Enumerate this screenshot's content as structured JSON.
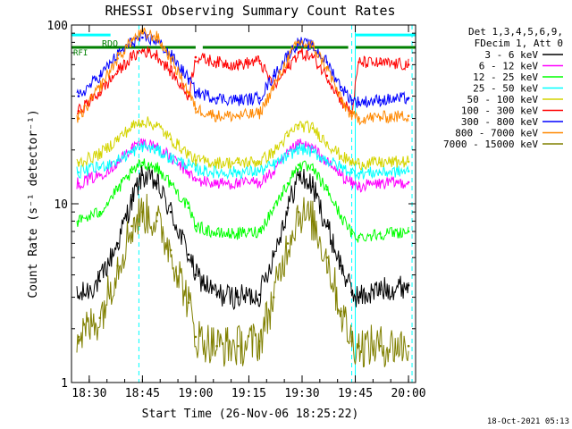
{
  "chart_data": {
    "type": "line",
    "title": "RHESSI Observing Summary Count Rates",
    "xlabel": "Start Time (26-Nov-06 18:25:22)",
    "ylabel": "Count Rate (s⁻¹ detector⁻¹)",
    "yscale": "log",
    "ylim": [
      1,
      100
    ],
    "xlim": [
      "18:25",
      "20:02"
    ],
    "x_ticks": [
      "18:30",
      "18:45",
      "19:00",
      "19:15",
      "19:30",
      "19:45",
      "20:00"
    ],
    "y_ticks": [
      "1",
      "10",
      "100"
    ],
    "footer": "18-Oct-2021 05:13",
    "legend_header": [
      "Det 1,3,4,5,6,9,",
      "FDecim 1, Att 0"
    ],
    "legend_placement": "right",
    "annotations": [
      "RDO",
      "RFI"
    ],
    "series": [
      {
        "name": "3 - 6 keV",
        "color": "#000000",
        "x": [
          "18:27",
          "18:33",
          "18:38",
          "18:42",
          "18:45",
          "18:49",
          "18:53",
          "18:58",
          "19:00",
          "19:06",
          "19:12",
          "19:18",
          "19:22",
          "19:26",
          "19:29",
          "19:33",
          "19:37",
          "19:41",
          "19:44",
          "19:46",
          "19:52",
          "20:00"
        ],
        "values": [
          3.0,
          3.7,
          6.0,
          10.5,
          14.5,
          13.0,
          9.0,
          5.2,
          4.0,
          3.1,
          3.0,
          3.1,
          5.2,
          9.5,
          14.5,
          12.5,
          7.5,
          4.5,
          3.2,
          3.0,
          3.3,
          3.5
        ]
      },
      {
        "name": "6 - 12 keV",
        "color": "#ff00ff",
        "x": [
          "18:27",
          "18:33",
          "18:38",
          "18:42",
          "18:45",
          "18:49",
          "18:53",
          "18:58",
          "19:00",
          "19:06",
          "19:12",
          "19:18",
          "19:22",
          "19:26",
          "19:29",
          "19:33",
          "19:37",
          "19:41",
          "19:44",
          "19:46",
          "19:52",
          "20:00"
        ],
        "values": [
          13.0,
          14.5,
          17.0,
          20.5,
          22.0,
          21.0,
          18.0,
          15.0,
          13.5,
          13.0,
          13.0,
          13.2,
          15.0,
          19.0,
          21.5,
          20.5,
          17.0,
          14.5,
          13.0,
          12.5,
          13.0,
          13.2
        ]
      },
      {
        "name": "12 - 25 keV",
        "color": "#00ff00",
        "x": [
          "18:27",
          "18:33",
          "18:38",
          "18:42",
          "18:45",
          "18:49",
          "18:53",
          "18:58",
          "19:00",
          "19:06",
          "19:12",
          "19:18",
          "19:22",
          "19:26",
          "19:29",
          "19:33",
          "19:37",
          "19:41",
          "19:44",
          "19:46",
          "19:52",
          "20:00"
        ],
        "values": [
          8.0,
          9.0,
          12.0,
          15.0,
          17.0,
          16.0,
          13.0,
          9.5,
          7.5,
          6.8,
          6.8,
          7.0,
          9.5,
          13.0,
          16.5,
          15.5,
          12.0,
          8.5,
          6.8,
          6.5,
          6.8,
          7.0
        ]
      },
      {
        "name": "25 - 50 keV",
        "color": "#00ffff",
        "x": [
          "18:27",
          "18:33",
          "18:38",
          "18:42",
          "18:45",
          "18:49",
          "18:53",
          "18:58",
          "19:00",
          "19:06",
          "19:12",
          "19:18",
          "19:22",
          "19:26",
          "19:29",
          "19:33",
          "19:37",
          "19:41",
          "19:44",
          "19:46",
          "19:52",
          "20:00"
        ],
        "values": [
          15.0,
          16.0,
          17.5,
          19.5,
          21.0,
          20.0,
          18.0,
          16.5,
          15.5,
          15.0,
          15.0,
          15.2,
          16.5,
          18.5,
          20.5,
          19.5,
          17.5,
          16.0,
          15.0,
          14.8,
          15.0,
          15.2
        ]
      },
      {
        "name": "50 - 100 keV",
        "color": "#d4d400",
        "x": [
          "18:27",
          "18:33",
          "18:38",
          "18:42",
          "18:45",
          "18:49",
          "18:53",
          "18:58",
          "19:00",
          "19:06",
          "19:12",
          "19:18",
          "19:22",
          "19:26",
          "19:29",
          "19:33",
          "19:37",
          "19:41",
          "19:44",
          "19:46",
          "19:52",
          "20:00"
        ],
        "values": [
          17.0,
          19.0,
          23.0,
          27.0,
          29.0,
          27.5,
          23.0,
          19.0,
          17.5,
          17.0,
          17.0,
          17.2,
          19.5,
          24.0,
          27.5,
          26.5,
          22.0,
          18.5,
          17.0,
          16.8,
          17.0,
          17.2
        ]
      },
      {
        "name": "100 - 300 keV",
        "color": "#ff0000",
        "x": [
          "18:27",
          "18:33",
          "18:38",
          "18:42",
          "18:45",
          "18:49",
          "18:53",
          "18:58",
          "19:00",
          "19:06",
          "19:12",
          "19:18",
          "19:22",
          "19:26",
          "19:29",
          "19:33",
          "19:37",
          "19:41",
          "19:44",
          "19:46",
          "19:52",
          "20:00"
        ],
        "values": [
          33.0,
          42.0,
          55.0,
          66.0,
          72.0,
          68.0,
          55.0,
          40.0,
          66.0,
          62.0,
          60.0,
          63.0,
          45.0,
          58.0,
          70.0,
          66.0,
          52.0,
          38.0,
          32.0,
          62.0,
          61.0,
          60.0
        ]
      },
      {
        "name": "300 - 800 keV",
        "color": "#0000ff",
        "x": [
          "18:27",
          "18:33",
          "18:38",
          "18:42",
          "18:45",
          "18:49",
          "18:53",
          "18:58",
          "19:00",
          "19:06",
          "19:12",
          "19:18",
          "19:22",
          "19:26",
          "19:29",
          "19:33",
          "19:37",
          "19:41",
          "19:44",
          "19:46",
          "19:52",
          "20:00"
        ],
        "values": [
          40.0,
          52.0,
          68.0,
          80.0,
          85.0,
          82.0,
          68.0,
          50.0,
          42.0,
          39.0,
          38.0,
          39.0,
          52.0,
          68.0,
          80.0,
          76.0,
          62.0,
          45.0,
          38.0,
          37.0,
          38.0,
          39.0
        ]
      },
      {
        "name": "800 - 7000 keV",
        "color": "#ff8800",
        "x": [
          "18:27",
          "18:33",
          "18:38",
          "18:42",
          "18:45",
          "18:49",
          "18:53",
          "18:58",
          "19:00",
          "19:06",
          "19:12",
          "19:18",
          "19:22",
          "19:26",
          "19:29",
          "19:33",
          "19:37",
          "19:41",
          "19:44",
          "19:46",
          "19:52",
          "20:00"
        ],
        "values": [
          30.0,
          45.0,
          65.0,
          82.0,
          90.0,
          86.0,
          65.0,
          42.0,
          34.0,
          31.0,
          31.0,
          32.0,
          45.0,
          65.0,
          80.0,
          76.0,
          58.0,
          38.0,
          31.0,
          30.0,
          30.5,
          31.0
        ]
      },
      {
        "name": "7000 - 15000 keV",
        "color": "#808000",
        "x": [
          "18:27",
          "18:33",
          "18:38",
          "18:42",
          "18:45",
          "18:49",
          "18:53",
          "18:58",
          "19:00",
          "19:06",
          "19:12",
          "19:18",
          "19:22",
          "19:26",
          "19:29",
          "19:33",
          "19:37",
          "19:41",
          "19:44",
          "19:46",
          "19:52",
          "20:00"
        ],
        "values": [
          1.8,
          2.3,
          4.5,
          7.5,
          9.0,
          8.0,
          5.5,
          2.8,
          1.8,
          1.6,
          1.6,
          1.7,
          3.0,
          6.0,
          9.0,
          8.0,
          5.0,
          2.5,
          1.7,
          1.6,
          1.6,
          1.6
        ]
      }
    ],
    "reference_lines": [
      {
        "color": "#008000",
        "y": 75,
        "segments": [
          [
            "18:25",
            "19:00"
          ],
          [
            "19:02",
            "19:43"
          ],
          [
            "19:45",
            "20:02"
          ]
        ]
      },
      {
        "color": "#00ffff",
        "y": 88,
        "segments": [
          [
            "18:25",
            "18:36"
          ],
          [
            "19:45",
            "20:02"
          ]
        ]
      }
    ],
    "vertical_markers": [
      {
        "color": "#00ffff",
        "style": "solid",
        "x": [
          "18:25",
          "19:45"
        ]
      },
      {
        "color": "#00ffff",
        "style": "dashed",
        "x": [
          "18:44",
          "19:44",
          "20:01"
        ]
      }
    ]
  }
}
